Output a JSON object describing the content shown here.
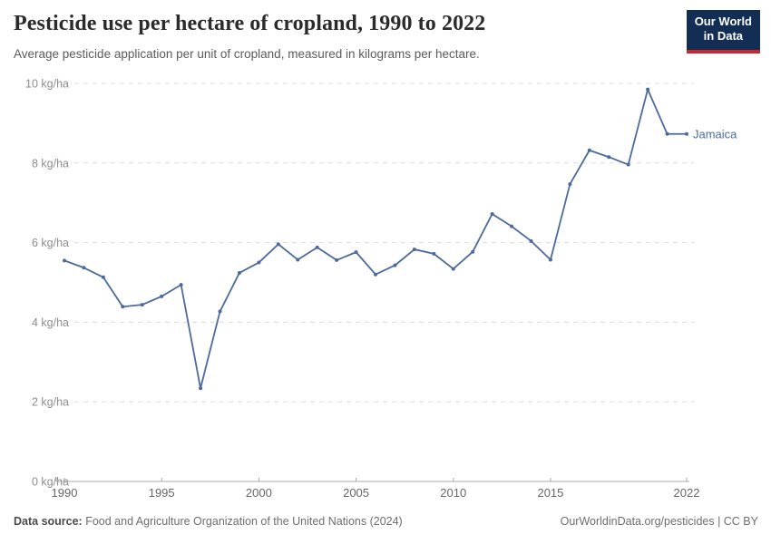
{
  "header": {
    "title": "Pesticide use per hectare of cropland, 1990 to 2022",
    "subtitle": "Average pesticide application per unit of cropland, measured in kilograms per hectare.",
    "logo": {
      "line1": "Our World",
      "line2": "in Data"
    }
  },
  "chart_data": {
    "type": "line",
    "title": "Pesticide use per hectare of cropland, 1990 to 2022",
    "xlabel": "",
    "ylabel": "kg/ha",
    "xlim": [
      1990,
      2022
    ],
    "ylim": [
      0,
      10
    ],
    "grid": "horizontal-dashed",
    "legend_position": "end-of-line",
    "x_ticks": [
      1990,
      1995,
      2000,
      2005,
      2010,
      2015,
      2022
    ],
    "y_ticks": [
      0,
      2,
      4,
      6,
      8,
      10
    ],
    "y_tick_suffix": " kg/ha",
    "series": [
      {
        "name": "Jamaica",
        "color": "#4C6A9C",
        "x": [
          1990,
          1991,
          1992,
          1993,
          1994,
          1995,
          1996,
          1997,
          1998,
          1999,
          2000,
          2001,
          2002,
          2003,
          2004,
          2005,
          2006,
          2007,
          2008,
          2009,
          2010,
          2011,
          2012,
          2013,
          2014,
          2015,
          2016,
          2017,
          2018,
          2019,
          2020,
          2021,
          2022
        ],
        "values": [
          5.55,
          5.37,
          5.13,
          4.39,
          4.44,
          4.65,
          4.94,
          2.34,
          4.27,
          5.24,
          5.5,
          5.96,
          5.57,
          5.88,
          5.56,
          5.76,
          5.2,
          5.43,
          5.83,
          5.72,
          5.34,
          5.77,
          6.72,
          6.41,
          6.04,
          5.57,
          7.47,
          8.32,
          8.15,
          7.96,
          9.85,
          8.73,
          8.73
        ]
      }
    ]
  },
  "footer": {
    "data_source_label": "Data source:",
    "data_source_text": " Food and Agriculture Organization of the United Nations (2024)",
    "link": "OurWorldinData.org/pesticides | CC BY"
  },
  "colors": {
    "line": "#4C6A9C",
    "gridline": "#dcdcdc",
    "axis": "#a8a8a8",
    "logo_bg": "#132E54",
    "logo_red": "#C5292F"
  }
}
